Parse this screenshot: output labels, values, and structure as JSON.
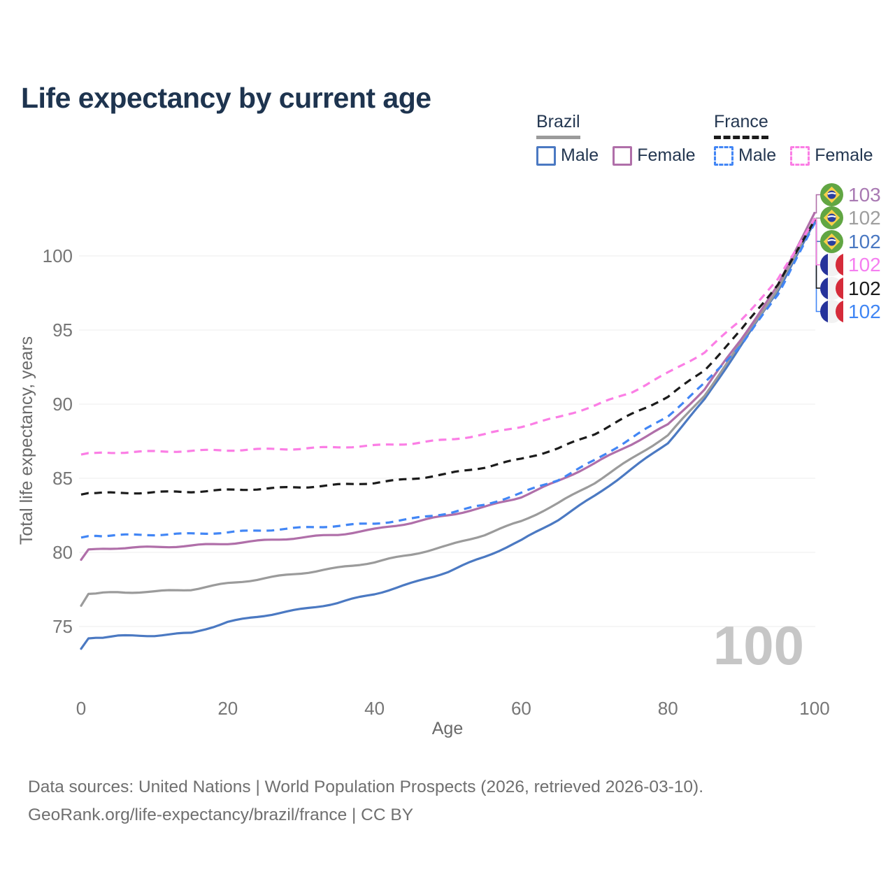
{
  "page": {
    "title": "Life expectancy by current age"
  },
  "legend": {
    "groups": [
      {
        "label": "Brazil",
        "underline_style": "solid",
        "underline_color": "#9b9b9b",
        "items": [
          {
            "label": "Male",
            "color": "#4b79c2",
            "style": "solid"
          },
          {
            "label": "Female",
            "color": "#b06fa9",
            "style": "solid"
          }
        ]
      },
      {
        "label": "France",
        "underline_style": "dashed",
        "underline_color": "#1b1b1b",
        "items": [
          {
            "label": "Male",
            "color": "#4286f5",
            "style": "dashed"
          },
          {
            "label": "Female",
            "color": "#fb7ee5",
            "style": "dashed"
          }
        ]
      }
    ]
  },
  "chart_data": {
    "type": "line",
    "title": "Life expectancy by current age",
    "xlabel": "Age",
    "ylabel": "Total life expectancy, years",
    "xlim": [
      0,
      100
    ],
    "ylim": [
      73,
      103.5
    ],
    "x_ticks": [
      0,
      20,
      40,
      60,
      80,
      100
    ],
    "y_ticks": [
      75,
      80,
      85,
      90,
      95,
      100
    ],
    "grid": "horizontal",
    "legend_position": "top-right",
    "ages": [
      0,
      1,
      5,
      10,
      15,
      20,
      25,
      30,
      35,
      40,
      45,
      50,
      55,
      60,
      65,
      70,
      75,
      80,
      85,
      90,
      95,
      100
    ],
    "series": [
      {
        "name": "Brazil Male",
        "country": "Brazil",
        "sex": "Male",
        "style": "solid",
        "color": "#4b79c2",
        "end_label": "102",
        "end_row": 2,
        "values": [
          73.5,
          74.2,
          74.35,
          74.4,
          74.55,
          75.3,
          75.75,
          76.15,
          76.6,
          77.2,
          77.9,
          78.7,
          79.7,
          80.8,
          82.2,
          83.8,
          85.6,
          87.4,
          90.3,
          94.0,
          97.65,
          102.3
        ]
      },
      {
        "name": "Brazil Both sexes",
        "country": "Brazil",
        "sex": "Both",
        "style": "solid",
        "color": "#9b9b9b",
        "end_label": "102",
        "end_row": 1,
        "values": [
          76.4,
          77.2,
          77.3,
          77.35,
          77.5,
          77.9,
          78.25,
          78.6,
          78.95,
          79.35,
          79.85,
          80.45,
          81.2,
          82.1,
          83.3,
          84.7,
          86.3,
          87.9,
          90.6,
          94.15,
          97.8,
          102.5
        ]
      },
      {
        "name": "Brazil Female",
        "country": "Brazil",
        "sex": "Female",
        "style": "solid",
        "color": "#b06fa9",
        "end_label": "103",
        "end_row": 0,
        "values": [
          79.5,
          80.2,
          80.3,
          80.35,
          80.45,
          80.6,
          80.8,
          81.0,
          81.2,
          81.55,
          82.0,
          82.5,
          83.05,
          83.75,
          84.8,
          86.0,
          87.3,
          88.6,
          91.0,
          94.4,
          98.0,
          102.9
        ]
      },
      {
        "name": "France Male",
        "country": "France",
        "sex": "Male",
        "style": "dashed",
        "color": "#4286f5",
        "end_label": "102",
        "end_row": 5,
        "values": [
          81.0,
          81.1,
          81.15,
          81.2,
          81.25,
          81.35,
          81.5,
          81.65,
          81.8,
          81.95,
          82.25,
          82.65,
          83.2,
          84.0,
          84.9,
          86.2,
          87.7,
          89.2,
          91.4,
          94.0,
          97.4,
          102.2
        ]
      },
      {
        "name": "France Both sexes",
        "country": "France",
        "sex": "Both",
        "style": "dashed",
        "color": "#1b1b1b",
        "end_label": "102",
        "end_row": 4,
        "values": [
          83.9,
          84.0,
          84.0,
          84.05,
          84.1,
          84.2,
          84.3,
          84.4,
          84.55,
          84.7,
          84.95,
          85.3,
          85.75,
          86.3,
          87.0,
          88.0,
          89.3,
          90.5,
          92.3,
          95.0,
          98.1,
          102.4
        ]
      },
      {
        "name": "France Female",
        "country": "France",
        "sex": "Female",
        "style": "dashed",
        "color": "#fb7ee5",
        "end_label": "102",
        "end_row": 3,
        "values": [
          86.6,
          86.7,
          86.75,
          86.8,
          86.85,
          86.9,
          86.95,
          87.0,
          87.1,
          87.2,
          87.35,
          87.6,
          87.95,
          88.5,
          89.1,
          89.9,
          90.8,
          92.1,
          93.5,
          95.7,
          98.4,
          102.5
        ]
      }
    ]
  },
  "end_labels": [
    {
      "country": "brazil",
      "value": "103",
      "color": "#a97ab3"
    },
    {
      "country": "brazil",
      "value": "102",
      "color": "#9e9e9e"
    },
    {
      "country": "brazil",
      "value": "102",
      "color": "#4a78c2"
    },
    {
      "country": "france",
      "value": "102",
      "color": "#f57ff0"
    },
    {
      "country": "france",
      "value": "102",
      "color": "#1b1b1b"
    },
    {
      "country": "france",
      "value": "102",
      "color": "#4086f4"
    }
  ],
  "watermark": "100",
  "colors": {
    "title": "#1e344f",
    "tick_label": "#767676",
    "axis_title": "#6a6a6a",
    "gridline": "#ececec",
    "watermark": "#c6c6c6"
  },
  "footer": {
    "line1": "Data sources: United Nations | World Population Prospects (2026, retrieved 2026-03-10).",
    "line2": "GeoRank.org/life-expectancy/brazil/france | CC BY"
  }
}
